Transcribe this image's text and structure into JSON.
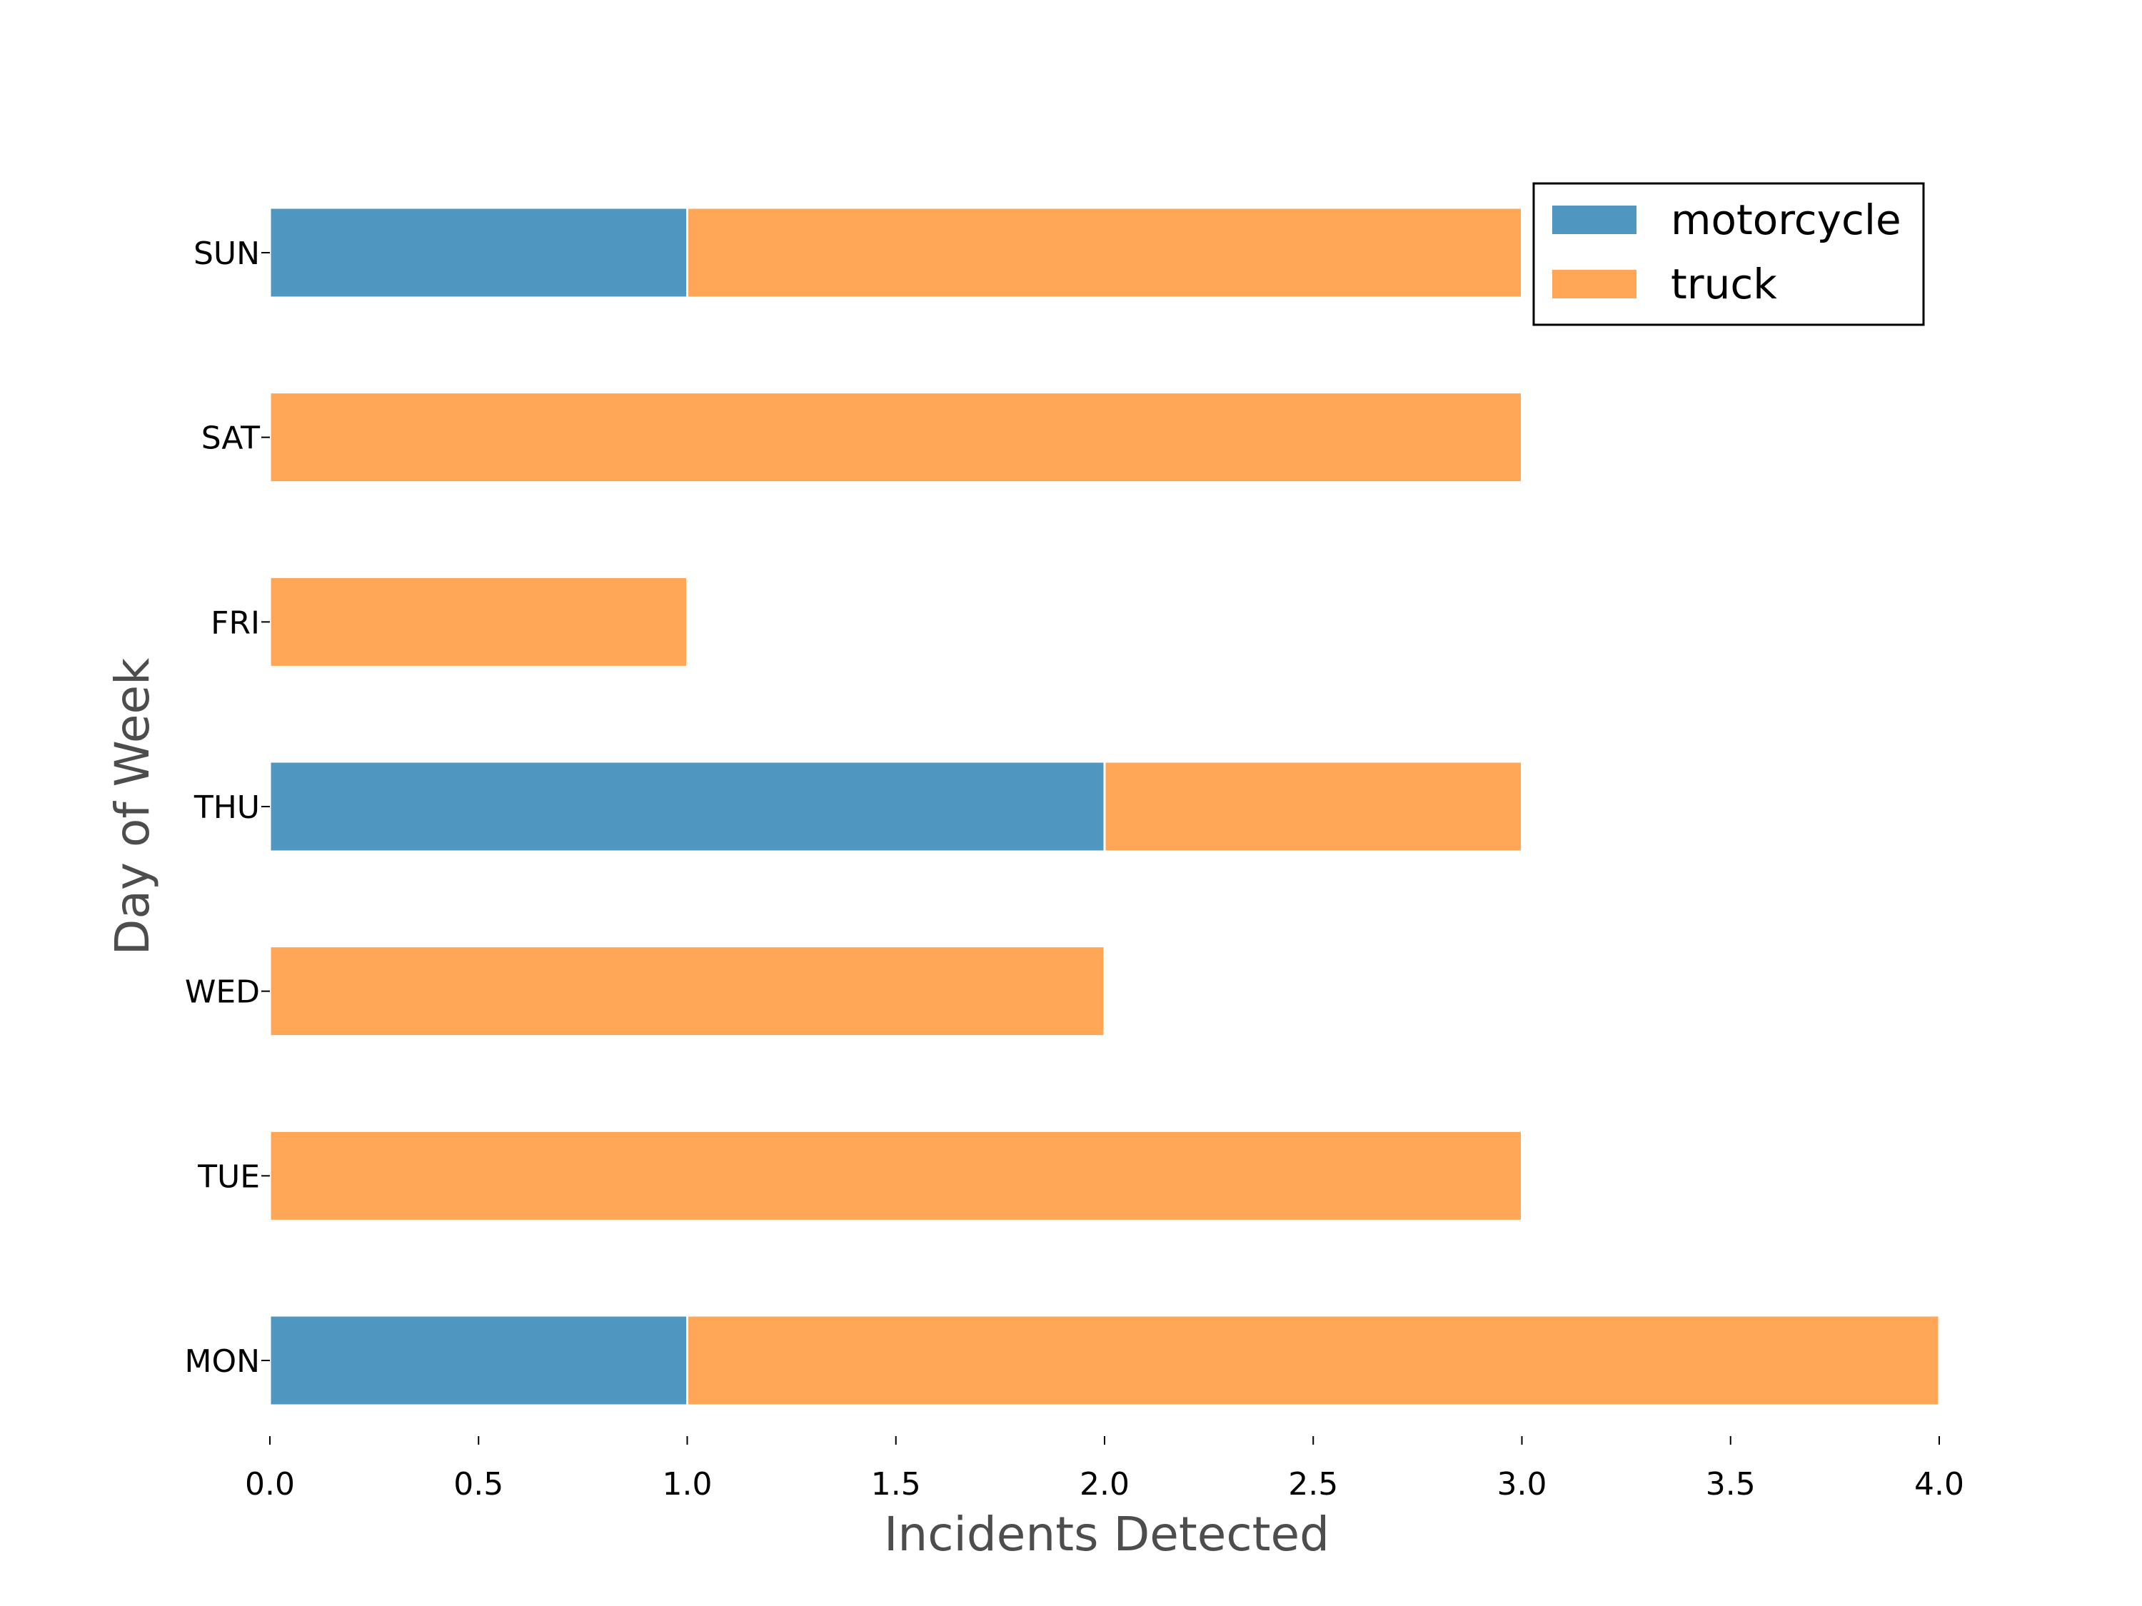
{
  "chart_data": {
    "type": "bar",
    "orientation": "horizontal",
    "stacked": true,
    "categories": [
      "MON",
      "TUE",
      "WED",
      "THU",
      "FRI",
      "SAT",
      "SUN"
    ],
    "series": [
      {
        "name": "motorcycle",
        "color": "#4f97c0",
        "values": [
          1,
          0,
          0,
          2,
          0,
          0,
          1
        ]
      },
      {
        "name": "truck",
        "color": "#ffa657",
        "values": [
          3,
          3,
          2,
          1,
          1,
          3,
          2
        ]
      }
    ],
    "xlabel": "Incidents Detected",
    "ylabel": "Day of Week",
    "xlim": [
      0,
      4
    ],
    "xticks": [
      "0.0",
      "0.5",
      "1.0",
      "1.5",
      "2.0",
      "2.5",
      "3.0",
      "3.5",
      "4.0"
    ],
    "grid": false,
    "legend_position": "top-right"
  }
}
